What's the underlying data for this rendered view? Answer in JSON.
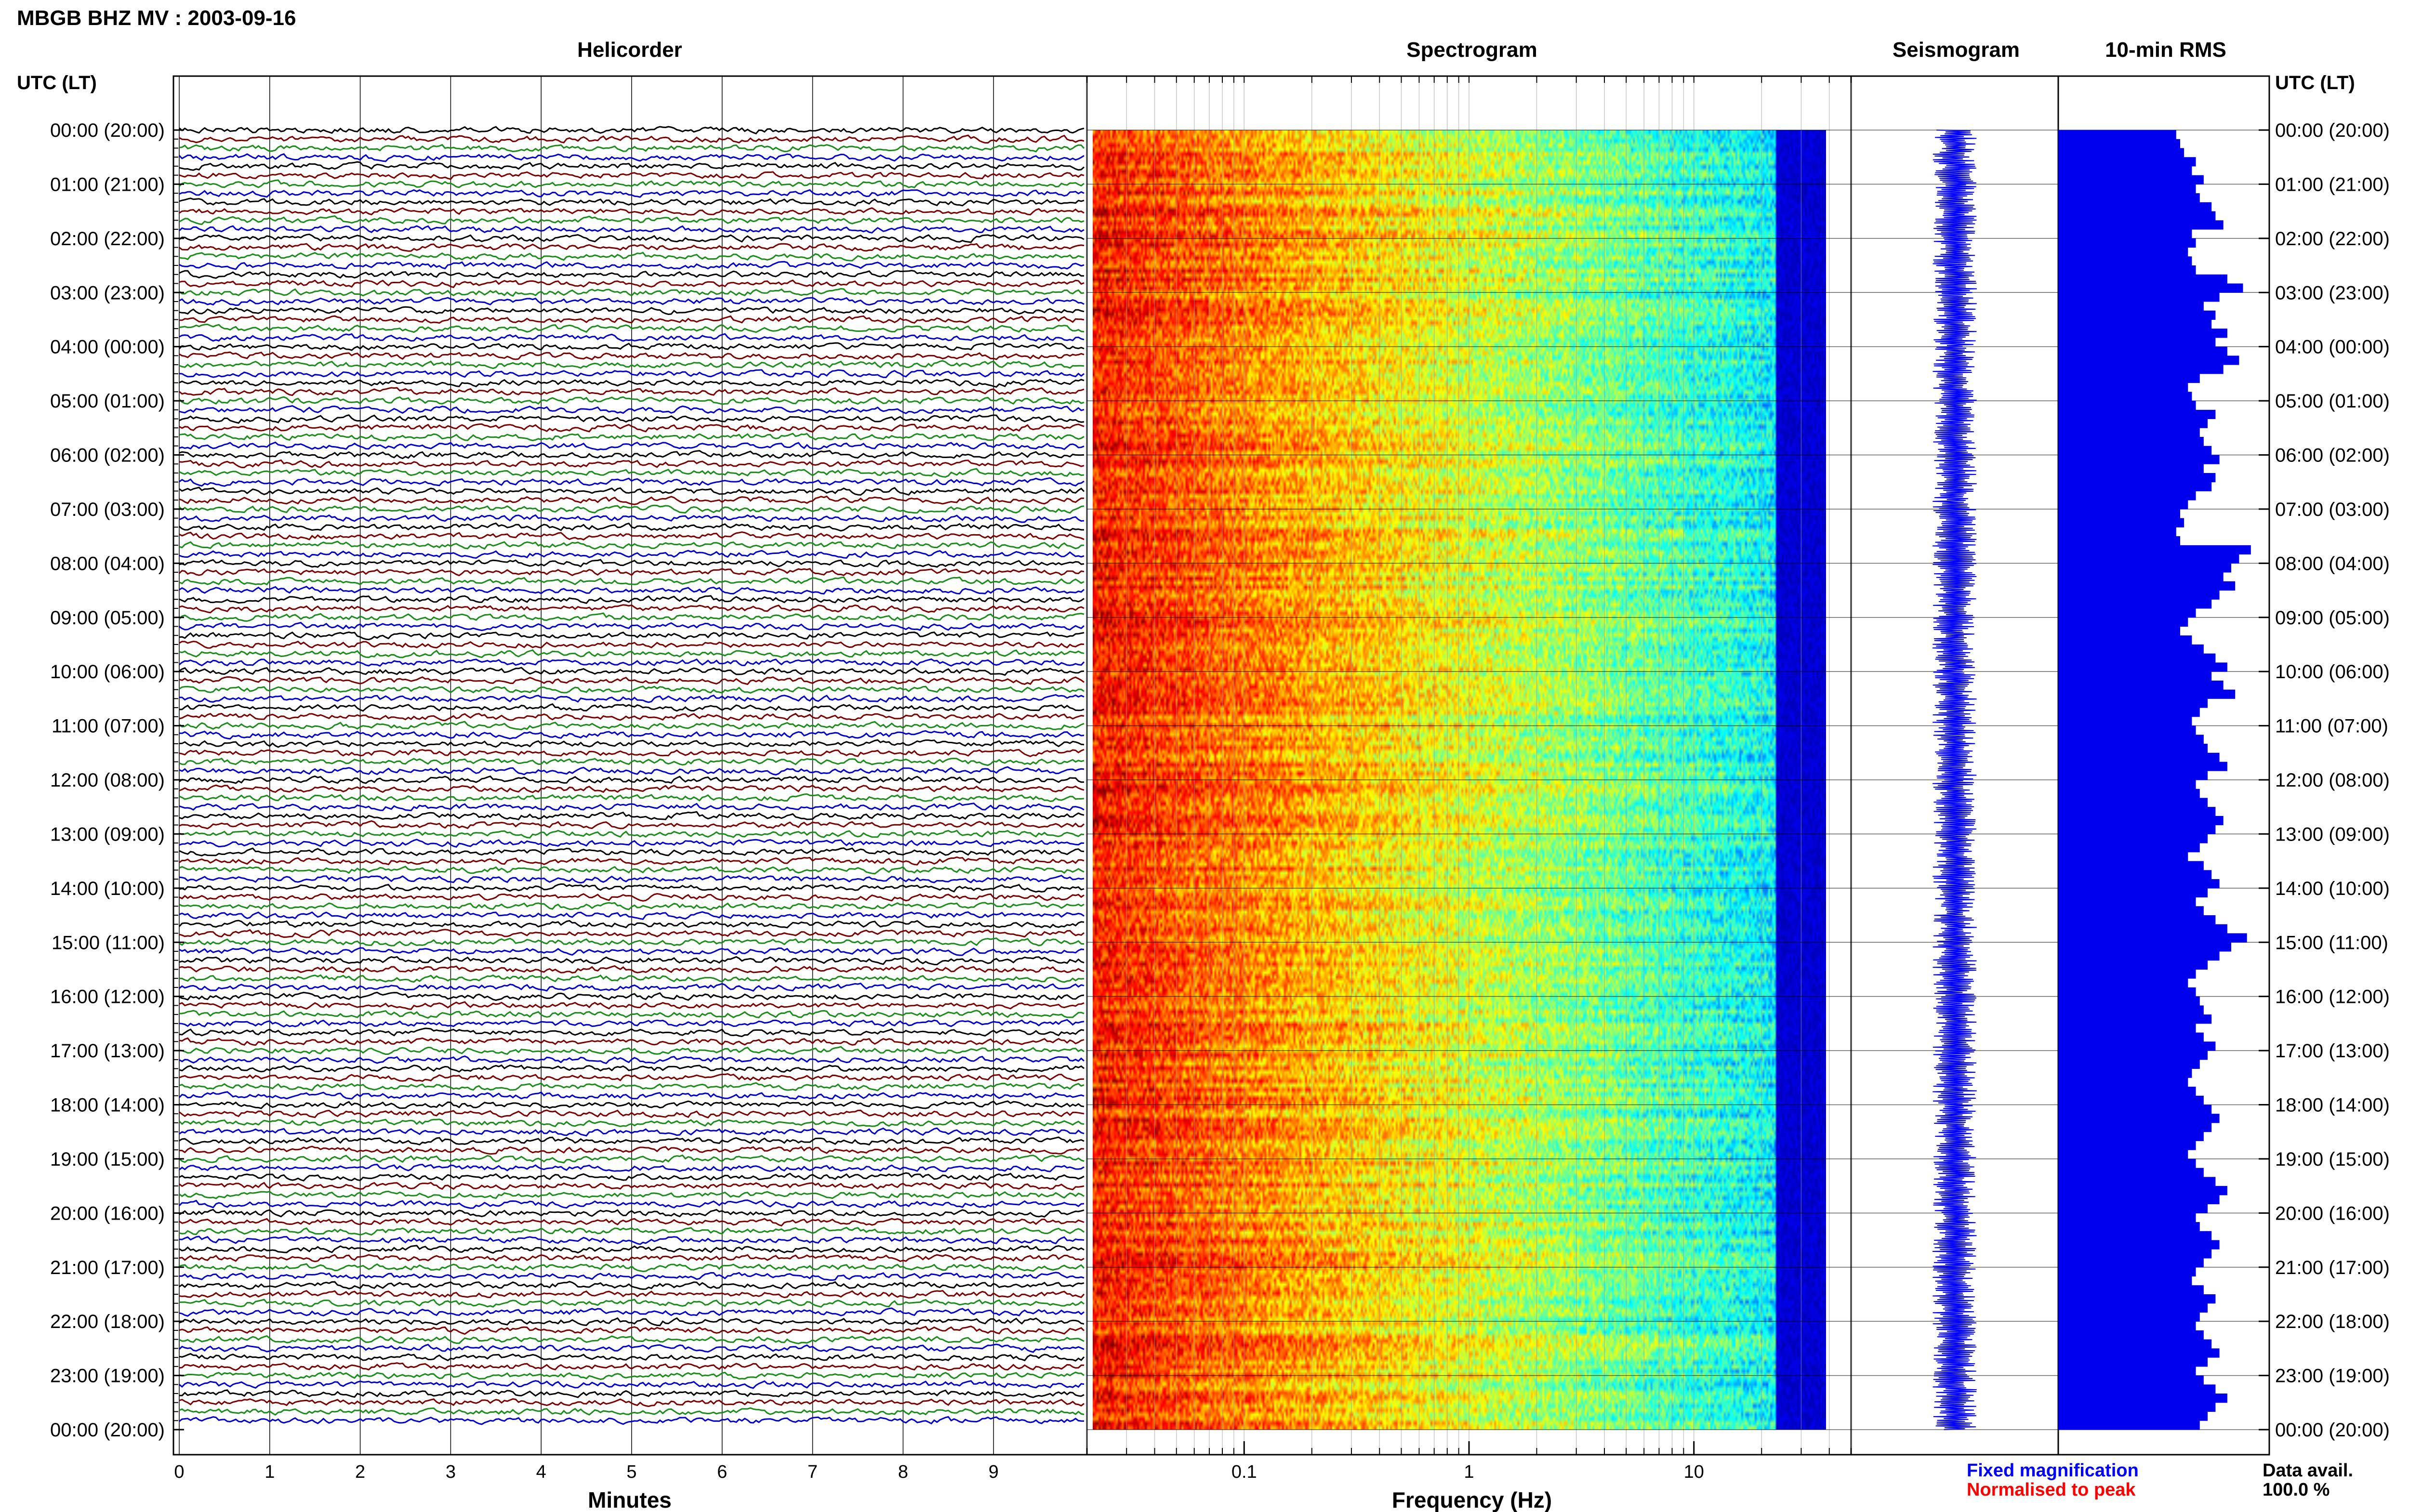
{
  "header": {
    "station": "MBGB BHZ MV : 2003-09-16"
  },
  "panels": {
    "helicorder": "Helicorder",
    "spectrogram": "Spectrogram",
    "seismogram": "Seismogram",
    "rms": "10-min RMS"
  },
  "axes": {
    "left_time_header": "UTC (LT)",
    "right_time_header": "UTC (LT)",
    "helicorder_xlabel": "Minutes",
    "spectrogram_xlabel": "Frequency (Hz)"
  },
  "legend": {
    "fixed": "Fixed magnification",
    "normalised": "Normalised to peak",
    "fixed_color": "#0000ff",
    "normalised_color": "#ff0000"
  },
  "availability": {
    "label": "Data avail.",
    "value": "100.0 %"
  },
  "colors": {
    "trace_cycle": [
      "#000000",
      "#7a0000",
      "#1a8c1a",
      "#0000cc"
    ],
    "rms_bar": "#0000ee",
    "seismogram": "#0000ff"
  },
  "chart_data": [
    {
      "type": "line",
      "title": "Helicorder",
      "xlabel": "Minutes",
      "x_ticks": [
        "0",
        "1",
        "2",
        "3",
        "4",
        "5",
        "6",
        "7",
        "8",
        "9"
      ],
      "xlim": [
        0,
        10
      ],
      "rows_per_hour": 6,
      "y_tick_labels": [
        "00:00 (20:00)",
        "01:00 (21:00)",
        "02:00 (22:00)",
        "03:00 (23:00)",
        "04:00 (00:00)",
        "05:00 (01:00)",
        "06:00 (02:00)",
        "07:00 (03:00)",
        "08:00 (04:00)",
        "09:00 (05:00)",
        "10:00 (06:00)",
        "11:00 (07:00)",
        "12:00 (08:00)",
        "13:00 (09:00)",
        "14:00 (10:00)",
        "15:00 (11:00)",
        "16:00 (12:00)",
        "17:00 (13:00)",
        "18:00 (14:00)",
        "19:00 (15:00)",
        "20:00 (16:00)",
        "21:00 (17:00)",
        "22:00 (18:00)",
        "23:00 (19:00)",
        "00:00 (20:00)"
      ]
    },
    {
      "type": "heatmap",
      "title": "Spectrogram",
      "xlabel": "Frequency (Hz)",
      "x_scale": "log",
      "x_ticks": [
        "0.1",
        "1",
        "10"
      ],
      "xlim": [
        0.02,
        50
      ]
    },
    {
      "type": "line",
      "title": "Seismogram"
    },
    {
      "type": "bar",
      "title": "10-min RMS",
      "orientation": "horizontal",
      "values": [
        0.6,
        0.62,
        0.64,
        0.7,
        0.68,
        0.74,
        0.7,
        0.72,
        0.78,
        0.8,
        0.84,
        0.68,
        0.7,
        0.66,
        0.68,
        0.7,
        0.86,
        0.94,
        0.82,
        0.74,
        0.8,
        0.78,
        0.86,
        0.8,
        0.86,
        0.92,
        0.84,
        0.72,
        0.66,
        0.68,
        0.7,
        0.8,
        0.76,
        0.72,
        0.74,
        0.78,
        0.82,
        0.74,
        0.8,
        0.78,
        0.7,
        0.66,
        0.62,
        0.64,
        0.6,
        0.62,
        0.98,
        0.92,
        0.88,
        0.84,
        0.9,
        0.82,
        0.78,
        0.7,
        0.66,
        0.62,
        0.68,
        0.74,
        0.8,
        0.86,
        0.78,
        0.84,
        0.9,
        0.76,
        0.72,
        0.68,
        0.7,
        0.74,
        0.76,
        0.82,
        0.86,
        0.76,
        0.7,
        0.72,
        0.76,
        0.8,
        0.84,
        0.8,
        0.76,
        0.72,
        0.66,
        0.74,
        0.78,
        0.82,
        0.76,
        0.7,
        0.74,
        0.8,
        0.86,
        0.96,
        0.88,
        0.82,
        0.76,
        0.7,
        0.66,
        0.7,
        0.72,
        0.74,
        0.78,
        0.7,
        0.74,
        0.8,
        0.76,
        0.72,
        0.68,
        0.66,
        0.7,
        0.74,
        0.78,
        0.82,
        0.78,
        0.74,
        0.7,
        0.66,
        0.7,
        0.74,
        0.8,
        0.86,
        0.82,
        0.76,
        0.7,
        0.72,
        0.78,
        0.82,
        0.78,
        0.74,
        0.7,
        0.68,
        0.74,
        0.8,
        0.76,
        0.72,
        0.7,
        0.74,
        0.78,
        0.82,
        0.76,
        0.7,
        0.74,
        0.8,
        0.86,
        0.8,
        0.76,
        0.72
      ]
    }
  ]
}
